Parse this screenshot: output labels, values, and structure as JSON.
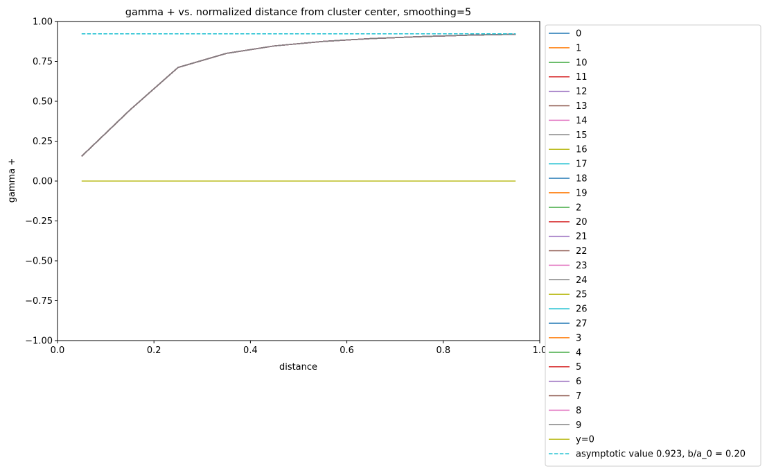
{
  "chart_data": {
    "type": "line",
    "title": "gamma + vs. normalized distance from cluster center, smoothing=5",
    "xlabel": "distance",
    "ylabel": "gamma +",
    "xlim": [
      0.0,
      1.0
    ],
    "ylim": [
      -1.0,
      1.0
    ],
    "xticks": [
      0.0,
      0.2,
      0.4,
      0.6,
      0.8,
      1.0
    ],
    "xtick_labels": [
      "0.0",
      "0.2",
      "0.4",
      "0.6",
      "0.8",
      "1.0"
    ],
    "yticks": [
      1.0,
      0.75,
      0.5,
      0.25,
      0.0,
      -0.25,
      -0.5,
      -0.75,
      -1.0
    ],
    "ytick_labels": [
      "1.00",
      "0.75",
      "0.50",
      "0.25",
      "0.00",
      "−0.25",
      "−0.50",
      "−0.75",
      "−1.00"
    ],
    "grid": false,
    "legend_placement": "outside right",
    "x": [
      0.05,
      0.15,
      0.25,
      0.35,
      0.45,
      0.55,
      0.65,
      0.75,
      0.85,
      0.95
    ],
    "curve_values": [
      0.155,
      0.445,
      0.712,
      0.8,
      0.847,
      0.875,
      0.893,
      0.905,
      0.914,
      0.92
    ],
    "series": [
      {
        "name": "0",
        "color": "#1f77b4",
        "values": "curve"
      },
      {
        "name": "1",
        "color": "#ff7f0e",
        "values": "curve"
      },
      {
        "name": "10",
        "color": "#2ca02c",
        "values": "curve"
      },
      {
        "name": "11",
        "color": "#d62728",
        "values": "curve"
      },
      {
        "name": "12",
        "color": "#9467bd",
        "values": "curve"
      },
      {
        "name": "13",
        "color": "#8c564b",
        "values": "curve"
      },
      {
        "name": "14",
        "color": "#e377c2",
        "values": "curve"
      },
      {
        "name": "15",
        "color": "#7f7f7f",
        "values": "curve"
      },
      {
        "name": "16",
        "color": "#bcbd22",
        "values": "curve"
      },
      {
        "name": "17",
        "color": "#17becf",
        "values": "curve"
      },
      {
        "name": "18",
        "color": "#1f77b4",
        "values": "curve"
      },
      {
        "name": "19",
        "color": "#ff7f0e",
        "values": "curve"
      },
      {
        "name": "2",
        "color": "#2ca02c",
        "values": "curve"
      },
      {
        "name": "20",
        "color": "#d62728",
        "values": "curve"
      },
      {
        "name": "21",
        "color": "#9467bd",
        "values": "curve"
      },
      {
        "name": "22",
        "color": "#8c564b",
        "values": "curve"
      },
      {
        "name": "23",
        "color": "#e377c2",
        "values": "curve"
      },
      {
        "name": "24",
        "color": "#7f7f7f",
        "values": "curve"
      },
      {
        "name": "25",
        "color": "#bcbd22",
        "values": "curve"
      },
      {
        "name": "26",
        "color": "#17becf",
        "values": "curve"
      },
      {
        "name": "27",
        "color": "#1f77b4",
        "values": "curve"
      },
      {
        "name": "3",
        "color": "#ff7f0e",
        "values": "curve"
      },
      {
        "name": "4",
        "color": "#2ca02c",
        "values": "curve"
      },
      {
        "name": "5",
        "color": "#d62728",
        "values": "curve"
      },
      {
        "name": "6",
        "color": "#9467bd",
        "values": "curve"
      },
      {
        "name": "7",
        "color": "#8c564b",
        "values": "curve"
      },
      {
        "name": "8",
        "color": "#e377c2",
        "values": "curve"
      },
      {
        "name": "9",
        "color": "#7f7f7f",
        "values": "curve"
      },
      {
        "name": "y=0",
        "color": "#bcbd22",
        "values": [
          0,
          0,
          0,
          0,
          0,
          0,
          0,
          0,
          0,
          0
        ]
      },
      {
        "name": "asymptotic value 0.923, b/a_0 = 0.20",
        "color": "#17becf",
        "dashed": true,
        "values": [
          0.923,
          0.923,
          0.923,
          0.923,
          0.923,
          0.923,
          0.923,
          0.923,
          0.923,
          0.923
        ]
      }
    ]
  }
}
